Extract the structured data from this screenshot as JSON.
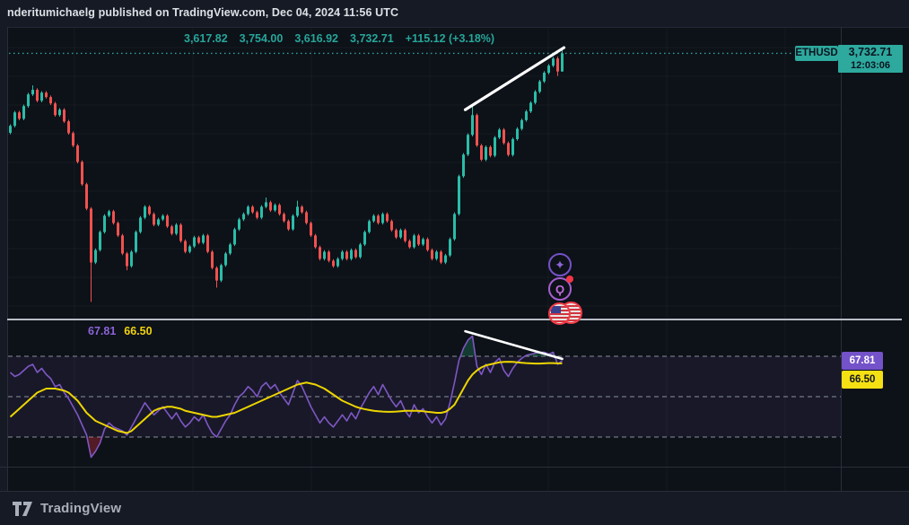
{
  "attribution": {
    "text": "nderitumichaelg published on TradingView.com, Dec 04, 2024 11:56 UTC"
  },
  "footer": {
    "brand": "TradingView"
  },
  "symbol_badge": {
    "label": "ETHUSD",
    "price": "3,732.71",
    "countdown": "12:03:06"
  },
  "ohlc_row": {
    "open": "3,617.82",
    "high": "3,754.00",
    "low": "3,616.92",
    "close": "3,732.71",
    "change": "+115.12 (+3.18%)"
  },
  "indicator_row": {
    "rsi_value": "67.81",
    "ma_value": "66.50"
  },
  "indicator_badges": {
    "rsi": "67.81",
    "ma": "66.50"
  },
  "colors": {
    "candle_up": "#2abda8",
    "candle_down": "#f0524f",
    "last_price_line": "#2da99e",
    "rsi_line": "#7e57c2",
    "rsi_ma_line": "#edd500",
    "level_dash": "#b5b8c0",
    "band_fill": "rgba(126,87,194,0.10)",
    "overbought_fill": "rgba(42,189,127,0.25)",
    "oversold_fill": "rgba(242,54,69,0.30)",
    "trendline": "#ffffff",
    "grid": "rgba(151,164,202,0.06)"
  },
  "chart_data": [
    {
      "type": "candlestick",
      "symbol": "ETHUSD",
      "last_price": 3732.71,
      "price_range": {
        "top": 3900,
        "bottom": 2050
      },
      "trendline": {
        "from_index": 101.4,
        "from_price": 3376,
        "to_index": 123.4,
        "to_price": 3769
      },
      "candles": [
        [
          3230,
          3284,
          3220,
          3274
        ],
        [
          3274,
          3369,
          3264,
          3359
        ],
        [
          3359,
          3369,
          3309,
          3319
        ],
        [
          3319,
          3409,
          3309,
          3399
        ],
        [
          3399,
          3483,
          3389,
          3473
        ],
        [
          3473,
          3530,
          3463,
          3502
        ],
        [
          3502,
          3512,
          3423,
          3433
        ],
        [
          3433,
          3494,
          3423,
          3484
        ],
        [
          3484,
          3494,
          3446,
          3456
        ],
        [
          3456,
          3466,
          3406,
          3416
        ],
        [
          3416,
          3426,
          3332,
          3342
        ],
        [
          3342,
          3386,
          3332,
          3376
        ],
        [
          3376,
          3386,
          3292,
          3302
        ],
        [
          3302,
          3312,
          3218,
          3228
        ],
        [
          3228,
          3238,
          3139,
          3149
        ],
        [
          3149,
          3159,
          3036,
          3046
        ],
        [
          3046,
          3056,
          2894,
          2904
        ],
        [
          2904,
          2914,
          2740,
          2750
        ],
        [
          2750,
          2760,
          2160,
          2409
        ],
        [
          2409,
          2498,
          2399,
          2488
        ],
        [
          2488,
          2612,
          2478,
          2602
        ],
        [
          2602,
          2715,
          2592,
          2705
        ],
        [
          2705,
          2743,
          2695,
          2733
        ],
        [
          2733,
          2743,
          2649,
          2659
        ],
        [
          2659,
          2669,
          2570,
          2580
        ],
        [
          2580,
          2590,
          2456,
          2466
        ],
        [
          2466,
          2476,
          2360,
          2386
        ],
        [
          2386,
          2487,
          2376,
          2477
        ],
        [
          2477,
          2612,
          2467,
          2602
        ],
        [
          2602,
          2703,
          2592,
          2693
        ],
        [
          2693,
          2772,
          2683,
          2762
        ],
        [
          2762,
          2772,
          2706,
          2716
        ],
        [
          2716,
          2726,
          2638,
          2648
        ],
        [
          2648,
          2692,
          2638,
          2682
        ],
        [
          2682,
          2715,
          2672,
          2705
        ],
        [
          2705,
          2715,
          2627,
          2637
        ],
        [
          2637,
          2647,
          2581,
          2591
        ],
        [
          2591,
          2658,
          2581,
          2648
        ],
        [
          2648,
          2658,
          2535,
          2545
        ],
        [
          2545,
          2555,
          2467,
          2477
        ],
        [
          2477,
          2521,
          2467,
          2511
        ],
        [
          2511,
          2578,
          2501,
          2568
        ],
        [
          2568,
          2578,
          2524,
          2534
        ],
        [
          2534,
          2590,
          2524,
          2580
        ],
        [
          2580,
          2590,
          2467,
          2477
        ],
        [
          2477,
          2487,
          2365,
          2375
        ],
        [
          2375,
          2385,
          2250,
          2295
        ],
        [
          2295,
          2402,
          2285,
          2392
        ],
        [
          2392,
          2476,
          2382,
          2466
        ],
        [
          2466,
          2533,
          2456,
          2523
        ],
        [
          2523,
          2629,
          2513,
          2619
        ],
        [
          2619,
          2692,
          2609,
          2682
        ],
        [
          2682,
          2726,
          2672,
          2716
        ],
        [
          2716,
          2772,
          2706,
          2762
        ],
        [
          2762,
          2772,
          2717,
          2727
        ],
        [
          2727,
          2737,
          2683,
          2693
        ],
        [
          2693,
          2772,
          2683,
          2762
        ],
        [
          2762,
          2820,
          2752,
          2790
        ],
        [
          2790,
          2800,
          2729,
          2739
        ],
        [
          2739,
          2783,
          2729,
          2773
        ],
        [
          2773,
          2783,
          2706,
          2716
        ],
        [
          2716,
          2726,
          2661,
          2671
        ],
        [
          2671,
          2681,
          2609,
          2619
        ],
        [
          2619,
          2715,
          2609,
          2705
        ],
        [
          2705,
          2800,
          2695,
          2762
        ],
        [
          2762,
          2772,
          2717,
          2727
        ],
        [
          2727,
          2737,
          2649,
          2659
        ],
        [
          2659,
          2669,
          2570,
          2580
        ],
        [
          2580,
          2590,
          2496,
          2506
        ],
        [
          2506,
          2516,
          2422,
          2432
        ],
        [
          2432,
          2487,
          2422,
          2477
        ],
        [
          2477,
          2487,
          2410,
          2420
        ],
        [
          2420,
          2430,
          2376,
          2386
        ],
        [
          2386,
          2442,
          2376,
          2432
        ],
        [
          2432,
          2487,
          2422,
          2477
        ],
        [
          2477,
          2487,
          2422,
          2432
        ],
        [
          2432,
          2498,
          2422,
          2488
        ],
        [
          2488,
          2498,
          2433,
          2443
        ],
        [
          2443,
          2533,
          2433,
          2523
        ],
        [
          2523,
          2612,
          2513,
          2602
        ],
        [
          2602,
          2681,
          2592,
          2671
        ],
        [
          2671,
          2715,
          2661,
          2705
        ],
        [
          2705,
          2715,
          2649,
          2659
        ],
        [
          2659,
          2726,
          2649,
          2716
        ],
        [
          2716,
          2726,
          2661,
          2671
        ],
        [
          2671,
          2681,
          2604,
          2614
        ],
        [
          2614,
          2624,
          2558,
          2568
        ],
        [
          2568,
          2624,
          2558,
          2614
        ],
        [
          2614,
          2624,
          2535,
          2545
        ],
        [
          2545,
          2555,
          2496,
          2506
        ],
        [
          2506,
          2590,
          2496,
          2580
        ],
        [
          2580,
          2590,
          2513,
          2523
        ],
        [
          2523,
          2567,
          2513,
          2557
        ],
        [
          2557,
          2567,
          2478,
          2488
        ],
        [
          2488,
          2498,
          2422,
          2432
        ],
        [
          2432,
          2487,
          2422,
          2477
        ],
        [
          2477,
          2487,
          2399,
          2409
        ],
        [
          2409,
          2464,
          2399,
          2454
        ],
        [
          2454,
          2567,
          2444,
          2557
        ],
        [
          2557,
          2726,
          2547,
          2716
        ],
        [
          2716,
          2965,
          2706,
          2955
        ],
        [
          2955,
          3102,
          2945,
          3092
        ],
        [
          3092,
          3227,
          3082,
          3217
        ],
        [
          3217,
          3400,
          3207,
          3342
        ],
        [
          3342,
          3352,
          3140,
          3150
        ],
        [
          3150,
          3160,
          3050,
          3060
        ],
        [
          3060,
          3150,
          3050,
          3140
        ],
        [
          3140,
          3150,
          3075,
          3085
        ],
        [
          3085,
          3210,
          3075,
          3200
        ],
        [
          3200,
          3260,
          3190,
          3250
        ],
        [
          3250,
          3260,
          3155,
          3165
        ],
        [
          3165,
          3175,
          3080,
          3090
        ],
        [
          3090,
          3200,
          3080,
          3190
        ],
        [
          3190,
          3265,
          3180,
          3255
        ],
        [
          3255,
          3320,
          3245,
          3310
        ],
        [
          3310,
          3375,
          3300,
          3365
        ],
        [
          3365,
          3430,
          3355,
          3420
        ],
        [
          3420,
          3500,
          3410,
          3490
        ],
        [
          3490,
          3565,
          3480,
          3555
        ],
        [
          3555,
          3620,
          3545,
          3610
        ],
        [
          3610,
          3665,
          3600,
          3655
        ],
        [
          3655,
          3710,
          3645,
          3700
        ],
        [
          3700,
          3712,
          3590,
          3618
        ],
        [
          3617.82,
          3754.0,
          3616.92,
          3732.71
        ]
      ]
    },
    {
      "type": "line",
      "name": "RSI",
      "levels": {
        "overbought": 70,
        "middle": 50,
        "oversold": 30
      },
      "range": {
        "top": 87,
        "bottom": 15
      },
      "trendline": {
        "from_index": 101.4,
        "from_value": 82.4,
        "to_index": 123,
        "to_value": 68.7
      },
      "series": [
        {
          "name": "RSI",
          "color": "#7e57c2",
          "last": 67.81,
          "values": [
            62,
            60,
            61,
            63,
            65,
            66,
            62,
            64,
            61,
            59,
            55,
            56,
            52,
            49,
            45,
            41,
            36,
            31,
            20,
            23,
            27,
            34,
            37,
            35,
            34,
            33,
            31,
            35,
            39,
            43,
            47,
            44,
            41,
            43,
            45,
            42,
            39,
            42,
            38,
            35,
            37,
            40,
            38,
            41,
            36,
            32,
            30,
            34,
            38,
            41,
            46,
            50,
            52,
            55,
            53,
            50,
            55,
            57,
            54,
            56,
            52,
            49,
            46,
            52,
            58,
            55,
            50,
            45,
            41,
            37,
            40,
            37,
            35,
            38,
            41,
            38,
            42,
            39,
            44,
            48,
            52,
            55,
            51,
            56,
            52,
            48,
            45,
            48,
            43,
            40,
            46,
            42,
            44,
            40,
            37,
            40,
            36,
            39,
            47,
            57,
            68,
            74,
            78,
            80,
            65,
            61,
            66,
            62,
            67,
            69,
            63,
            60,
            64,
            67,
            69,
            70.5,
            71,
            71.5,
            72,
            72,
            71,
            72,
            66,
            67.81
          ]
        },
        {
          "name": "RSI-based MA",
          "color": "#edd500",
          "last": 66.5,
          "values": [
            40,
            42,
            44,
            46,
            48,
            50,
            52,
            53,
            54,
            54,
            54,
            53.5,
            53,
            52,
            50,
            48,
            45,
            42,
            40,
            38,
            37,
            36,
            35,
            34,
            33,
            32.5,
            32,
            33,
            35,
            37,
            39,
            41,
            43,
            44,
            44.5,
            45,
            45,
            44.5,
            44,
            43,
            42.5,
            42,
            41.5,
            41,
            40.5,
            40,
            40,
            40.5,
            41,
            41.5,
            42,
            43,
            44,
            45,
            46,
            47,
            48,
            49,
            50,
            51,
            52,
            53,
            54,
            55,
            56,
            56.5,
            57,
            56.5,
            56,
            55,
            54,
            52.5,
            51,
            49.5,
            48,
            47,
            46,
            45,
            44.3,
            43.8,
            43.4,
            43,
            42.8,
            42.6,
            42.5,
            42.5,
            42.6,
            42.8,
            43,
            43,
            43,
            43,
            42.8,
            42.5,
            42.3,
            42,
            42,
            42.5,
            44,
            46,
            50,
            54,
            58,
            61,
            63,
            64.5,
            65.5,
            66,
            66.5,
            67,
            67.2,
            67.3,
            67.2,
            67,
            66.8,
            66.6,
            66.5,
            66.4,
            66.4,
            66.5,
            66.6,
            66.6,
            66.5,
            66.5
          ]
        }
      ]
    }
  ]
}
